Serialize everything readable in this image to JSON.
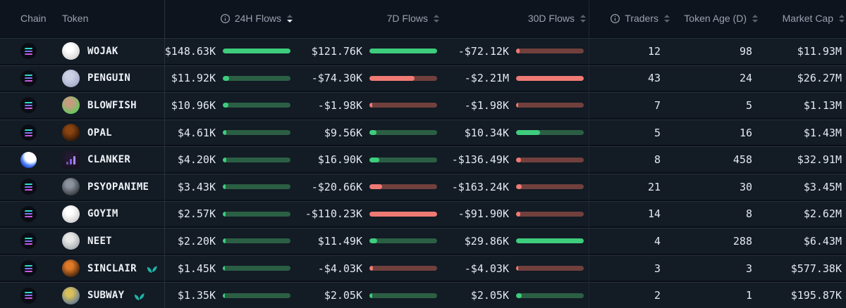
{
  "table": {
    "sort": {
      "column": "flows_24h",
      "direction": "desc"
    },
    "columns": {
      "chain": "Chain",
      "token": "Token",
      "flows_24h": "24H Flows",
      "flows_7d": "7D Flows",
      "flows_30d": "30D Flows",
      "traders": "Traders",
      "token_age": "Token Age (D)",
      "market_cap": "Market Cap"
    },
    "colors": {
      "positive_bright": "#3dcd7d",
      "positive_track": "#2b5f44",
      "negative_bright": "#ef7a74",
      "negative_track": "#71403d",
      "sprout": "#1fb2a6"
    },
    "rows": [
      {
        "chain": "solana",
        "token": "WOJAK",
        "sprout": false,
        "avatar": {
          "c1": "#ffffff",
          "c2": "#c9c9c9",
          "shape": "circle",
          "glyph": null
        },
        "flows_24h": {
          "text": "$148.63K",
          "pct": 100,
          "sign": "pos"
        },
        "flows_7d": {
          "text": "$121.76K",
          "pct": 100,
          "sign": "pos"
        },
        "flows_30d": {
          "text": "-$72.12K",
          "pct": 5,
          "sign": "neg"
        },
        "traders": "12",
        "token_age": "98",
        "market_cap": "$11.93M"
      },
      {
        "chain": "solana",
        "token": "PENGUIN",
        "sprout": false,
        "avatar": {
          "c1": "#ccd1e6",
          "c2": "#99a1c2",
          "shape": "circle",
          "glyph": null
        },
        "flows_24h": {
          "text": "$11.92K",
          "pct": 9,
          "sign": "pos"
        },
        "flows_7d": {
          "text": "-$74.30K",
          "pct": 67,
          "sign": "neg"
        },
        "flows_30d": {
          "text": "-$2.21M",
          "pct": 100,
          "sign": "neg"
        },
        "traders": "43",
        "token_age": "24",
        "market_cap": "$26.27M"
      },
      {
        "chain": "solana",
        "token": "BLOWFISH",
        "sprout": false,
        "avatar": {
          "c1": "#c79b80",
          "c2": "#48d653",
          "shape": "circle",
          "glyph": null
        },
        "flows_24h": {
          "text": "$10.96K",
          "pct": 8,
          "sign": "pos"
        },
        "flows_7d": {
          "text": "-$1.98K",
          "pct": 4,
          "sign": "neg"
        },
        "flows_30d": {
          "text": "-$1.98K",
          "pct": 3,
          "sign": "neg"
        },
        "traders": "7",
        "token_age": "5",
        "market_cap": "$1.13M"
      },
      {
        "chain": "solana",
        "token": "OPAL",
        "sprout": false,
        "avatar": {
          "c1": "#8a4410",
          "c2": "#160a04",
          "shape": "circle",
          "glyph": null
        },
        "flows_24h": {
          "text": "$4.61K",
          "pct": 5,
          "sign": "pos"
        },
        "flows_7d": {
          "text": "$9.56K",
          "pct": 10,
          "sign": "pos"
        },
        "flows_30d": {
          "text": "$10.34K",
          "pct": 35,
          "sign": "pos"
        },
        "traders": "5",
        "token_age": "16",
        "market_cap": "$1.43M"
      },
      {
        "chain": "base",
        "token": "CLANKER",
        "sprout": false,
        "avatar": {
          "c1": "#221a30",
          "c2": "#15101f",
          "shape": "squircle",
          "glyph": "bars"
        },
        "flows_24h": {
          "text": "$4.20K",
          "pct": 5,
          "sign": "pos"
        },
        "flows_7d": {
          "text": "$16.90K",
          "pct": 15,
          "sign": "pos"
        },
        "flows_30d": {
          "text": "-$136.49K",
          "pct": 7,
          "sign": "neg"
        },
        "traders": "8",
        "token_age": "458",
        "market_cap": "$32.91M"
      },
      {
        "chain": "solana",
        "token": "PSYOPANIME",
        "sprout": false,
        "avatar": {
          "c1": "#8b939e",
          "c2": "#1c1e23",
          "shape": "circle",
          "glyph": null
        },
        "flows_24h": {
          "text": "$3.43K",
          "pct": 4,
          "sign": "pos"
        },
        "flows_7d": {
          "text": "-$20.66K",
          "pct": 19,
          "sign": "neg"
        },
        "flows_30d": {
          "text": "-$163.24K",
          "pct": 8,
          "sign": "neg"
        },
        "traders": "21",
        "token_age": "30",
        "market_cap": "$3.45M"
      },
      {
        "chain": "solana",
        "token": "GOYIM",
        "sprout": false,
        "avatar": {
          "c1": "#ffffff",
          "c2": "#c2c2c2",
          "shape": "circle",
          "glyph": null
        },
        "flows_24h": {
          "text": "$2.57K",
          "pct": 4,
          "sign": "pos"
        },
        "flows_7d": {
          "text": "-$110.23K",
          "pct": 100,
          "sign": "neg"
        },
        "flows_30d": {
          "text": "-$91.90K",
          "pct": 6,
          "sign": "neg"
        },
        "traders": "14",
        "token_age": "8",
        "market_cap": "$2.62M"
      },
      {
        "chain": "solana",
        "token": "NEET",
        "sprout": false,
        "avatar": {
          "c1": "#e8e8e8",
          "c2": "#979ca0",
          "shape": "circle",
          "glyph": null
        },
        "flows_24h": {
          "text": "$2.20K",
          "pct": 4,
          "sign": "pos"
        },
        "flows_7d": {
          "text": "$11.49K",
          "pct": 11,
          "sign": "pos"
        },
        "flows_30d": {
          "text": "$29.86K",
          "pct": 100,
          "sign": "pos"
        },
        "traders": "4",
        "token_age": "288",
        "market_cap": "$6.43M"
      },
      {
        "chain": "solana",
        "token": "SINCLAIR",
        "sprout": true,
        "avatar": {
          "c1": "#e07a28",
          "c2": "#190c05",
          "shape": "circle",
          "glyph": null
        },
        "flows_24h": {
          "text": "$1.45K",
          "pct": 3,
          "sign": "pos"
        },
        "flows_7d": {
          "text": "-$4.03K",
          "pct": 5,
          "sign": "neg"
        },
        "flows_30d": {
          "text": "-$4.03K",
          "pct": 3,
          "sign": "neg"
        },
        "traders": "3",
        "token_age": "3",
        "market_cap": "$577.38K"
      },
      {
        "chain": "solana",
        "token": "SUBWAY",
        "sprout": true,
        "avatar": {
          "c1": "#d9c05a",
          "c2": "#3f66a8",
          "shape": "circle",
          "glyph": null
        },
        "flows_24h": {
          "text": "$1.35K",
          "pct": 3,
          "sign": "pos"
        },
        "flows_7d": {
          "text": "$2.05K",
          "pct": 4,
          "sign": "pos"
        },
        "flows_30d": {
          "text": "$2.05K",
          "pct": 8,
          "sign": "pos"
        },
        "traders": "2",
        "token_age": "1",
        "market_cap": "$195.87K"
      }
    ]
  }
}
